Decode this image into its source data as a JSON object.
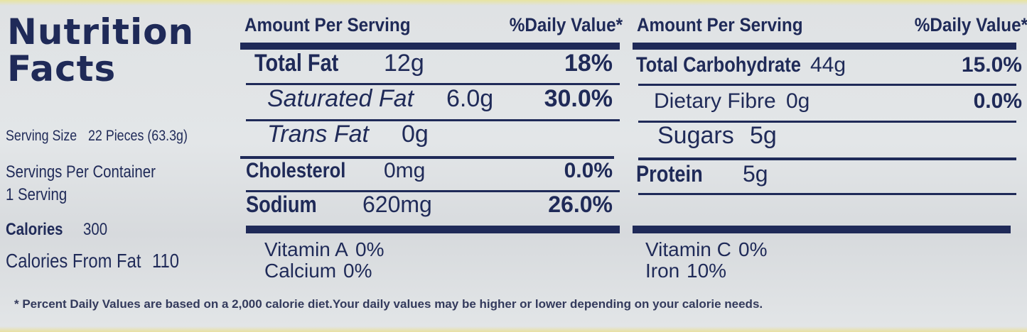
{
  "title_lines": [
    "Nutrition",
    "Facts"
  ],
  "serving": {
    "size_label": "Serving Size",
    "size_value": "22 Pieces (63.3g)",
    "per_container_label": "Servings Per Container",
    "per_container_value": "1 Serving",
    "calories_label": "Calories",
    "calories_value": "300",
    "fat_calories_label": "Calories From Fat",
    "fat_calories_value": "110"
  },
  "columns": [
    {
      "header_amount": "Amount Per Serving",
      "header_dv": "%Daily Value*",
      "rows": [
        {
          "name": "Total Fat",
          "amount": "12g",
          "dv": "18%"
        },
        {
          "name": "Saturated Fat",
          "amount": "6.0g",
          "dv": "30.0%"
        },
        {
          "name": "Trans Fat",
          "amount": "0g"
        },
        {
          "name": "Cholesterol",
          "amount": "0mg",
          "dv": "0.0%"
        },
        {
          "name": "Sodium",
          "amount": "620mg",
          "dv": "26.0%"
        }
      ],
      "vitamins": [
        {
          "name": "Vitamin A",
          "dv": "0%"
        },
        {
          "name": "Calcium",
          "dv": "0%"
        }
      ]
    },
    {
      "header_amount": "Amount Per Serving",
      "header_dv": "%Daily Value*",
      "rows": [
        {
          "name": "Total Carbohydrate",
          "amount": "44g",
          "dv": "15.0%"
        },
        {
          "name": "Dietary Fibre",
          "amount": "0g",
          "dv": "0.0%"
        },
        {
          "name": "Sugars",
          "amount": "5g"
        },
        {
          "name": "Protein",
          "amount": "5g"
        }
      ],
      "vitamins": [
        {
          "name": "Vitamin C",
          "dv": "0%"
        },
        {
          "name": "Iron",
          "dv": "10%"
        }
      ]
    }
  ],
  "footnote": "* Percent Daily Values are based on a 2,000 calorie diet.Your daily values  may be higher or lower depending on your calorie needs."
}
